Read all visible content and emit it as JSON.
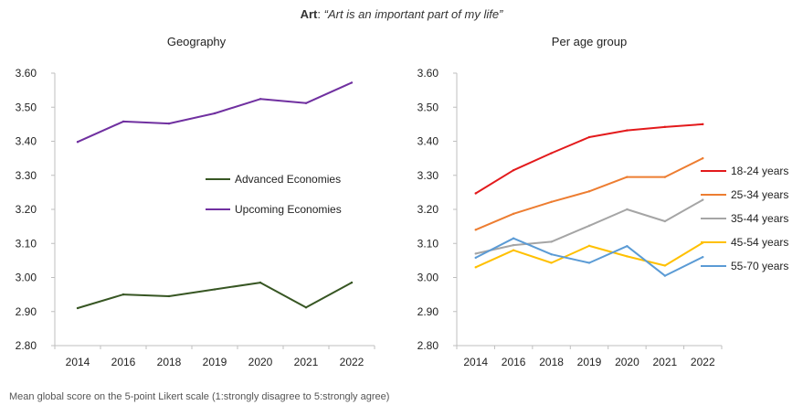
{
  "header": {
    "title_bold": "Art",
    "title_sep": ": ",
    "title_quote": "“Art is an important part of my life”"
  },
  "footnote": "Mean global score on the 5-point Likert scale (1:strongly disagree to 5:strongly agree)",
  "chart_data": [
    {
      "type": "line",
      "title": "Geography",
      "categories": [
        "2014",
        "2016",
        "2018",
        "2019",
        "2020",
        "2021",
        "2022"
      ],
      "ylim": [
        2.8,
        3.6
      ],
      "yticks": [
        "2.80",
        "2.90",
        "3.00",
        "3.10",
        "3.20",
        "3.30",
        "3.40",
        "3.50",
        "3.60"
      ],
      "grid": false,
      "legend": "center-right",
      "series": [
        {
          "name": "Advanced Economies",
          "color": "#375623",
          "values": [
            2.91,
            2.95,
            2.945,
            2.965,
            2.985,
            2.912,
            2.985
          ]
        },
        {
          "name": "Upcoming Economies",
          "color": "#7030a0",
          "values": [
            3.398,
            3.458,
            3.452,
            3.482,
            3.524,
            3.512,
            3.572
          ]
        }
      ]
    },
    {
      "type": "line",
      "title": "Per age group",
      "categories": [
        "2014",
        "2016",
        "2018",
        "2019",
        "2020",
        "2021",
        "2022"
      ],
      "ylim": [
        2.8,
        3.6
      ],
      "yticks": [
        "2.80",
        "2.90",
        "3.00",
        "3.10",
        "3.20",
        "3.30",
        "3.40",
        "3.50",
        "3.60"
      ],
      "grid": false,
      "legend": "right",
      "series": [
        {
          "name": "18-24 years",
          "color": "#e31a1c",
          "values": [
            3.247,
            3.315,
            3.365,
            3.412,
            3.432,
            3.442,
            3.45
          ]
        },
        {
          "name": "25-34 years",
          "color": "#ed7d31",
          "values": [
            3.14,
            3.187,
            3.222,
            3.253,
            3.295,
            3.295,
            3.35
          ]
        },
        {
          "name": "35-44 years",
          "color": "#a5a5a5",
          "values": [
            3.07,
            3.095,
            3.105,
            3.152,
            3.2,
            3.165,
            3.228
          ]
        },
        {
          "name": "45-54 years",
          "color": "#ffc000",
          "values": [
            3.03,
            3.08,
            3.043,
            3.093,
            3.062,
            3.035,
            3.102
          ]
        },
        {
          "name": "55-70 years",
          "color": "#5b9bd5",
          "values": [
            3.058,
            3.115,
            3.068,
            3.043,
            3.092,
            3.005,
            3.06
          ]
        }
      ]
    }
  ]
}
